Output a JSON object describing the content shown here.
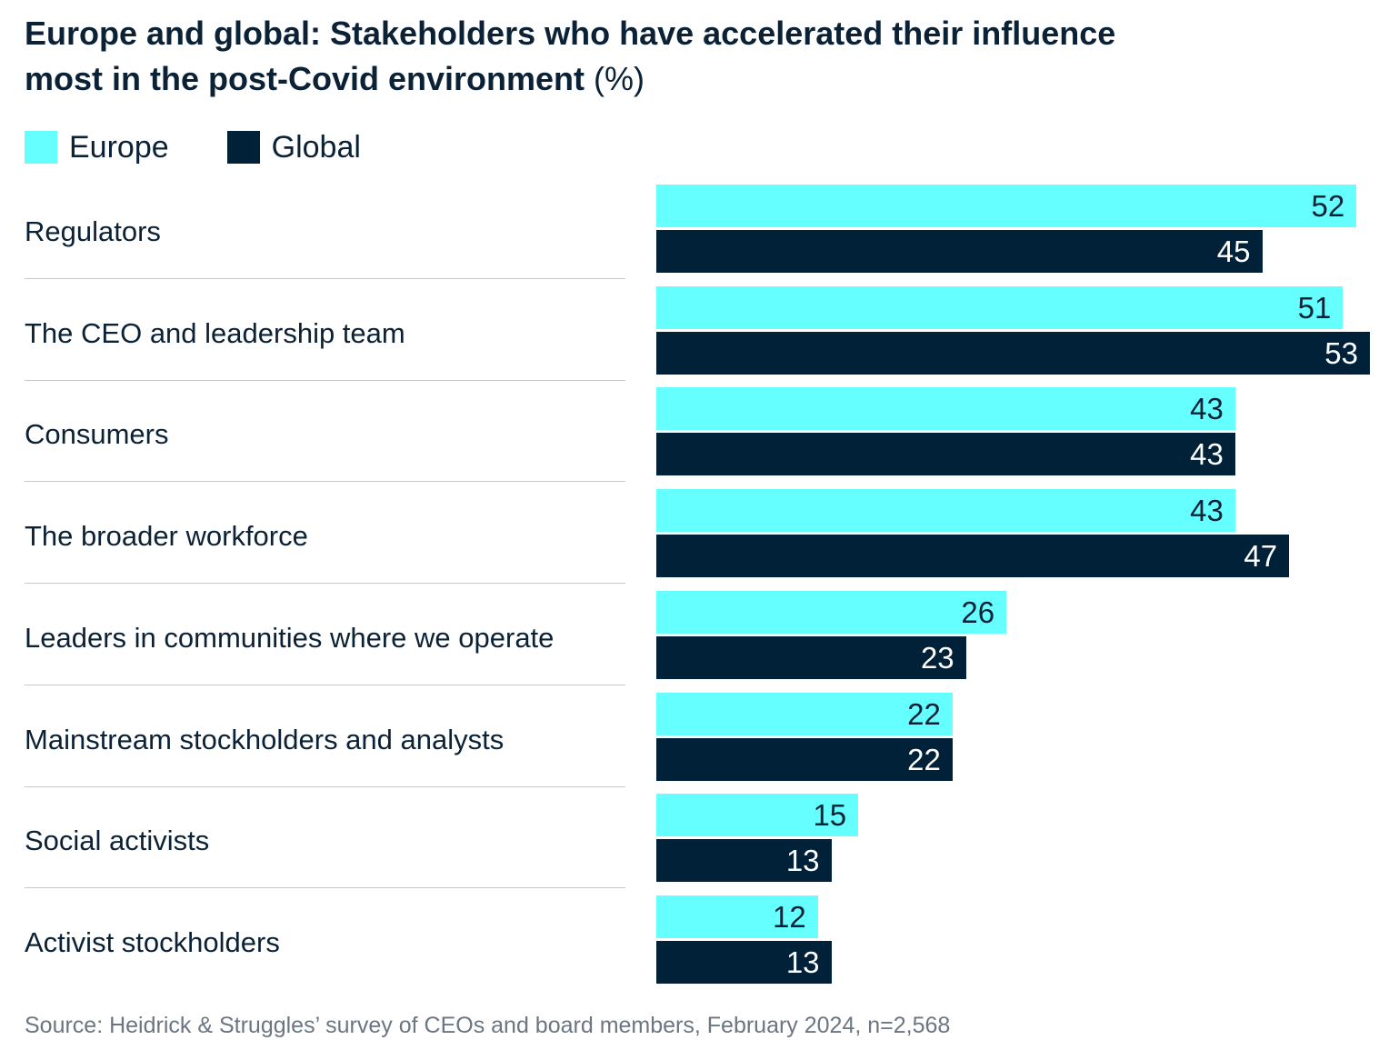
{
  "colors": {
    "europe": "#66FFFF",
    "global": "#002138",
    "text": "#0b2135",
    "source": "#6b7682"
  },
  "chart_data": {
    "type": "bar",
    "orientation": "horizontal",
    "title_line1": "Europe and global: Stakeholders who have accelerated their influence",
    "title_line2": "most in the post-Covid environment",
    "title_unit": "(%)",
    "categories": [
      "Regulators",
      "The CEO and leadership team",
      "Consumers",
      "The broader workforce",
      "Leaders in communities where we operate",
      "Mainstream stockholders and analysts",
      "Social activists",
      "Activist stockholders"
    ],
    "series": [
      {
        "name": "Europe",
        "values": [
          52,
          51,
          43,
          43,
          26,
          22,
          15,
          12
        ]
      },
      {
        "name": "Global",
        "values": [
          45,
          53,
          43,
          47,
          23,
          22,
          13,
          13
        ]
      }
    ],
    "xlim": [
      0,
      53
    ],
    "grid": false,
    "legend_placement": "top-left",
    "data_labels": true
  },
  "source": "Source: Heidrick & Struggles’ survey of CEOs and board members, February 2024, n=2,568"
}
